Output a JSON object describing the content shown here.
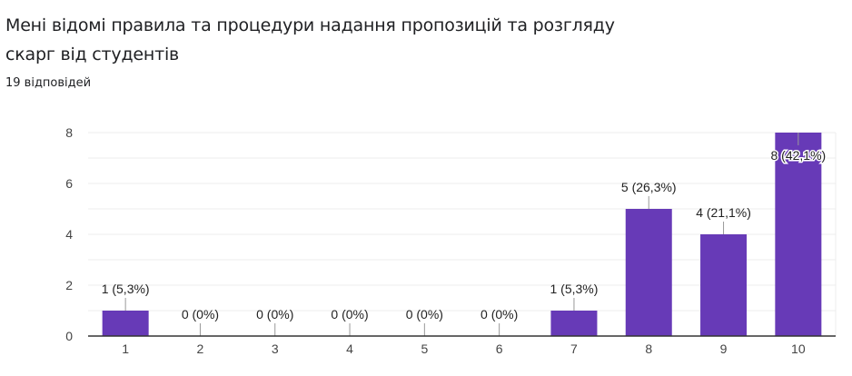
{
  "question": {
    "title": "Мені відомі правила та процедури надання пропозицій та розгляду скарг від студентів",
    "responses": "19 відповідей"
  },
  "colors": {
    "bar": "#673ab7",
    "grid": "#ececec",
    "axis": "#333333",
    "text": "#202124"
  },
  "chart_data": {
    "type": "bar",
    "title": "Мені відомі правила та процедури надання пропозицій та розгляду скарг від студентів",
    "subtitle": "19 відповідей",
    "categories": [
      "1",
      "2",
      "3",
      "4",
      "5",
      "6",
      "7",
      "8",
      "9",
      "10"
    ],
    "values": [
      1,
      0,
      0,
      0,
      0,
      0,
      1,
      5,
      4,
      8
    ],
    "labels": [
      "1 (5,3%)",
      "0 (0%)",
      "0 (0%)",
      "0 (0%)",
      "0 (0%)",
      "0 (0%)",
      "1 (5,3%)",
      "5 (26,3%)",
      "4 (21,1%)",
      "8 (42,1%)"
    ],
    "percentages": [
      5.3,
      0,
      0,
      0,
      0,
      0,
      5.3,
      26.3,
      21.1,
      42.1
    ],
    "yticks": [
      0,
      2,
      4,
      6,
      8
    ],
    "ylim": [
      0,
      8
    ],
    "xlabel": "",
    "ylabel": "",
    "grid": true,
    "legend": "none"
  }
}
